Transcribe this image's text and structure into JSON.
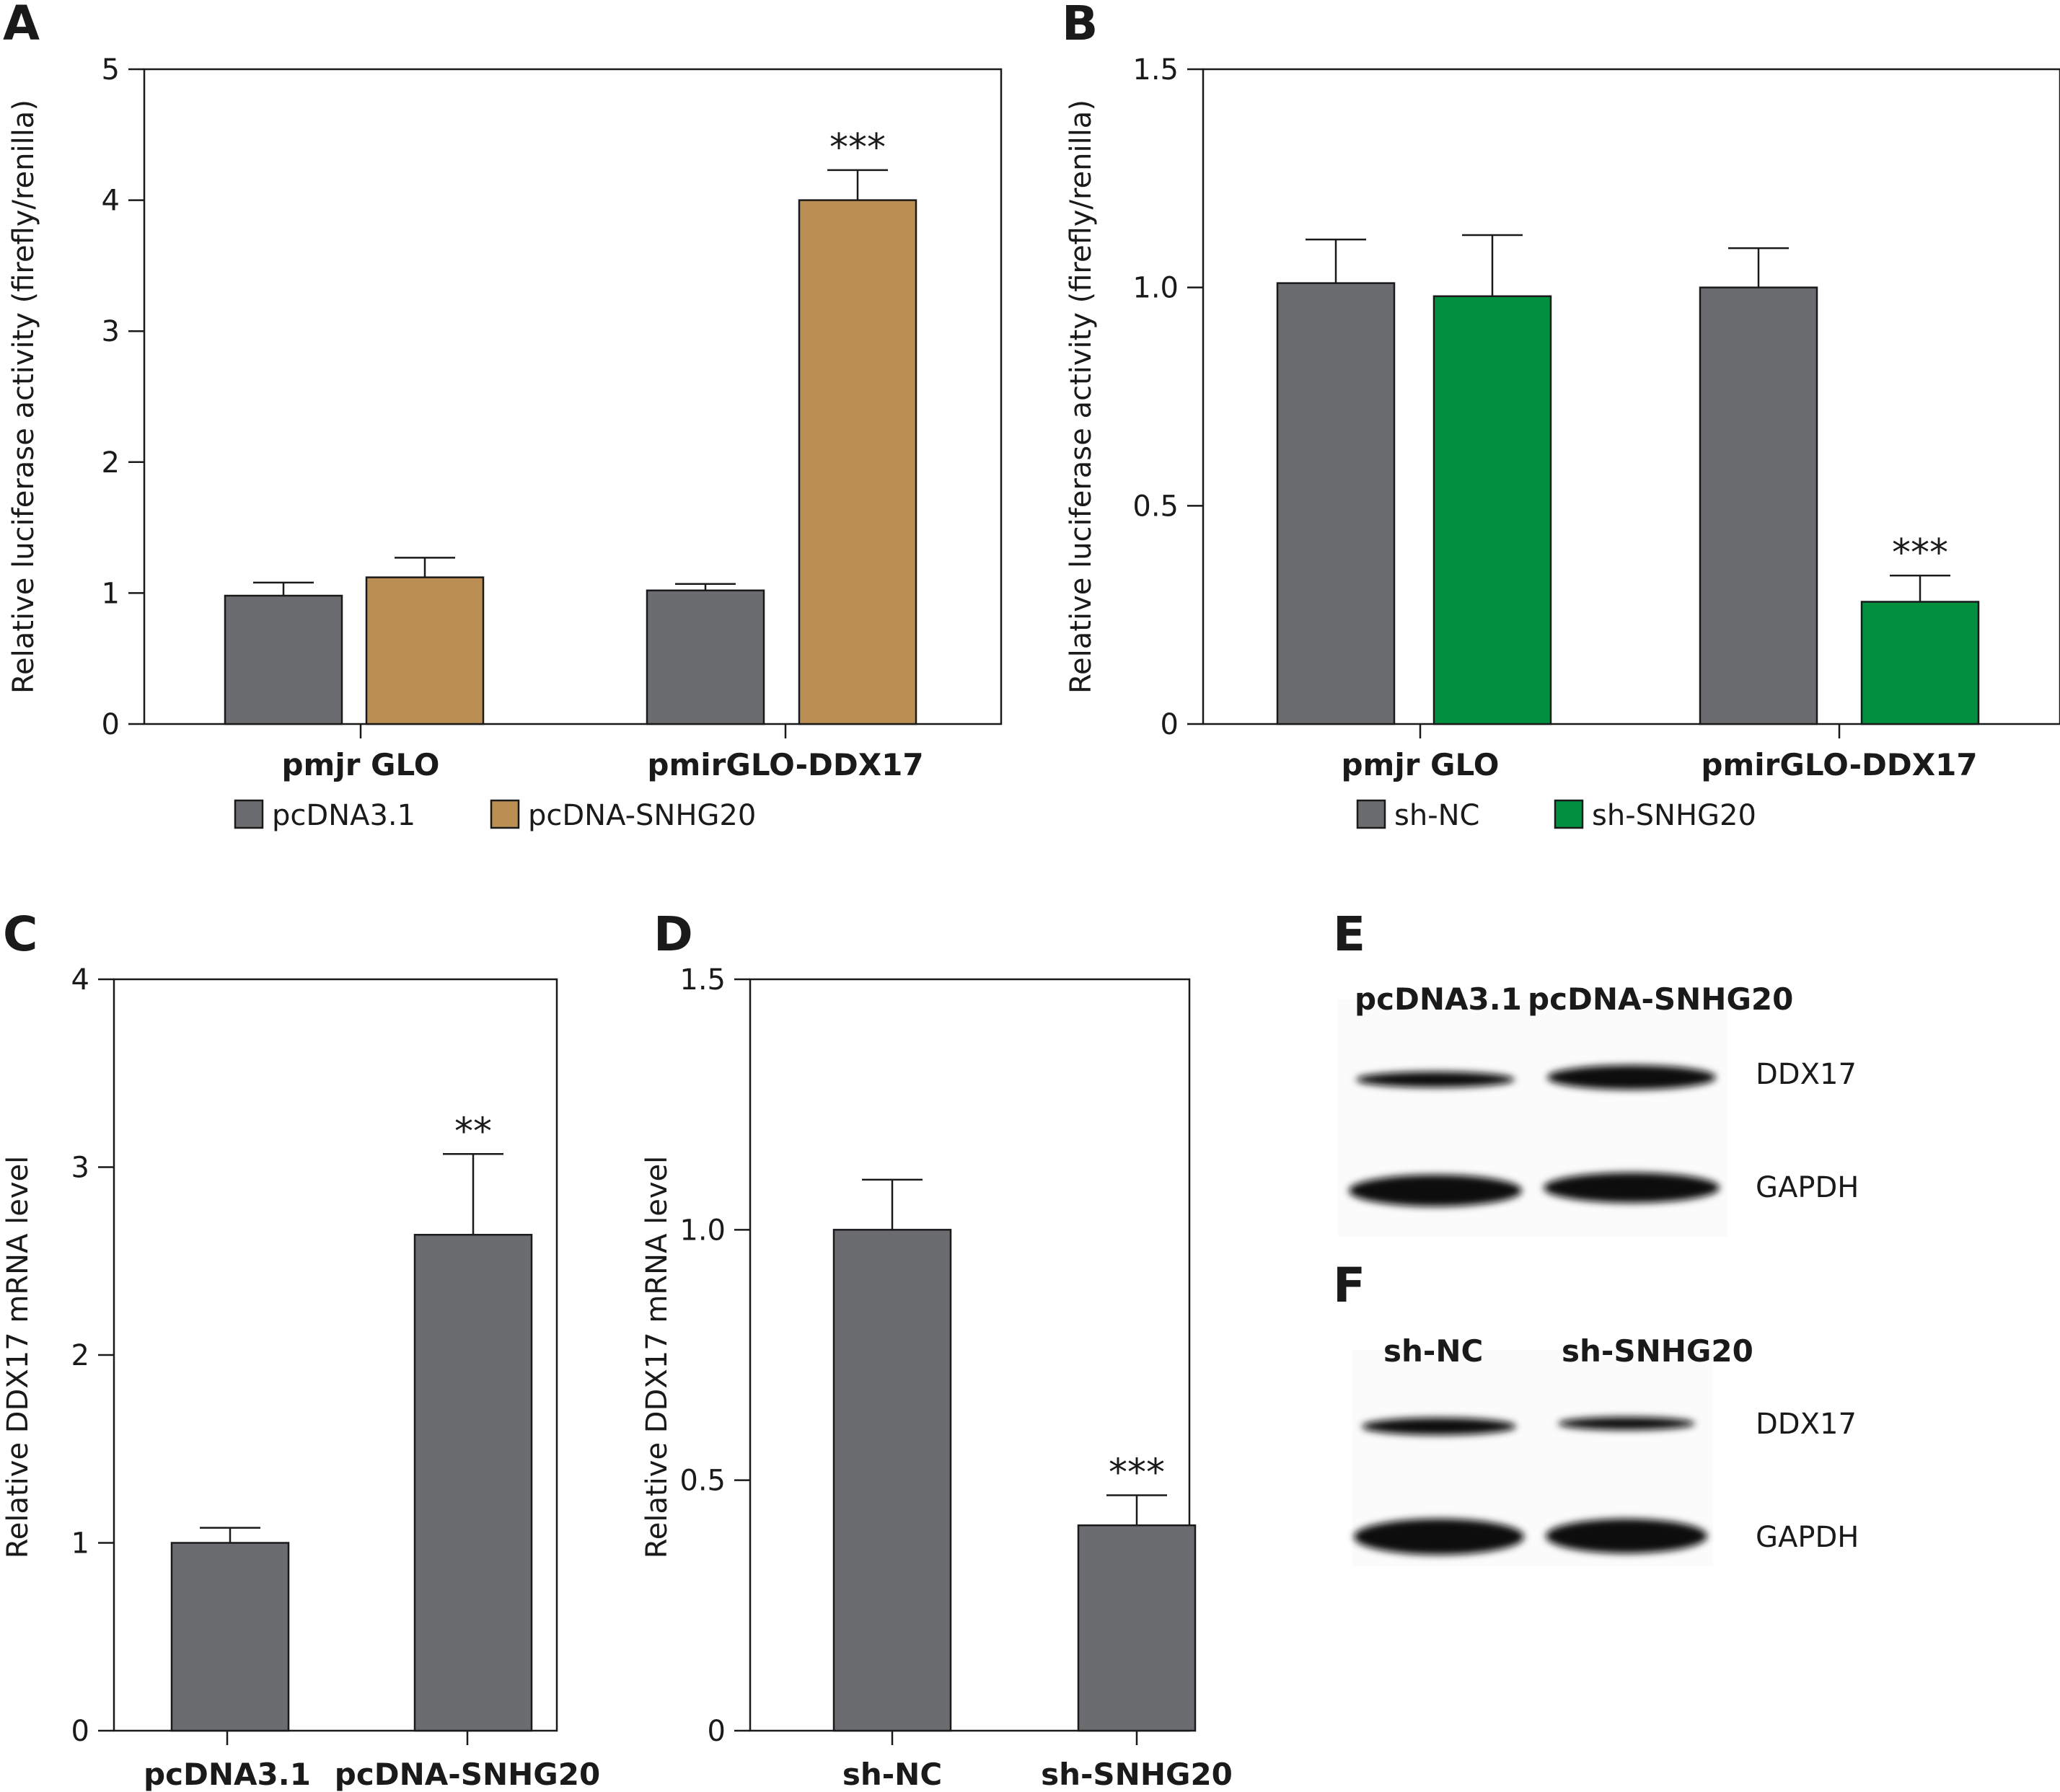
{
  "panels": {
    "A": {
      "letter": "A"
    },
    "B": {
      "letter": "B"
    },
    "C": {
      "letter": "C"
    },
    "D": {
      "letter": "D"
    },
    "E": {
      "letter": "E"
    },
    "F": {
      "letter": "F"
    }
  },
  "colors": {
    "gray": "#6b6c70",
    "tan": "#bb8e53",
    "green": "#009040",
    "axis": "#1a1a1a"
  },
  "chart_data": [
    {
      "id": "A",
      "type": "bar",
      "ylabel": "Relative luciferase activity (firefly/renilla)",
      "ylim": [
        0,
        5
      ],
      "yticks": [
        "0",
        "1",
        "2",
        "3",
        "4",
        "5"
      ],
      "categories": [
        "pmjr GLO",
        "pmirGLO-DDX17"
      ],
      "series": [
        {
          "name": "pcDNA3.1",
          "color": "#6b6c70",
          "values": [
            0.98,
            1.02
          ],
          "errors": [
            0.1,
            0.05
          ]
        },
        {
          "name": "pcDNA-SNHG20",
          "color": "#bb8e53",
          "values": [
            1.12,
            4.0
          ],
          "errors": [
            0.15,
            0.23
          ]
        }
      ],
      "annotations": [
        {
          "series": 1,
          "category": 1,
          "text": "***"
        }
      ],
      "legend": "bottom"
    },
    {
      "id": "B",
      "type": "bar",
      "ylabel": "Relative luciferase activity (firefly/renilla)",
      "ylim": [
        0,
        1.5
      ],
      "yticks": [
        "0",
        "0.5",
        "1.0",
        "1.5"
      ],
      "categories": [
        "pmjr GLO",
        "pmirGLO-DDX17"
      ],
      "series": [
        {
          "name": "sh-NC",
          "color": "#6b6c70",
          "values": [
            1.01,
            1.0
          ],
          "errors": [
            0.1,
            0.09
          ]
        },
        {
          "name": "sh-SNHG20",
          "color": "#009040",
          "values": [
            0.98,
            0.28
          ],
          "errors": [
            0.14,
            0.06
          ]
        }
      ],
      "annotations": [
        {
          "series": 1,
          "category": 1,
          "text": "***"
        }
      ],
      "legend": "bottom"
    },
    {
      "id": "C",
      "type": "bar",
      "ylabel": "Relative DDX17 mRNA level",
      "ylim": [
        0,
        4
      ],
      "yticks": [
        "0",
        "1",
        "2",
        "3",
        "4"
      ],
      "categories": [
        "pcDNA3.1",
        "pcDNA-SNHG20"
      ],
      "series": [
        {
          "color": "#6b6c70",
          "values": [
            1.0,
            2.64
          ],
          "errors": [
            0.08,
            0.43
          ]
        }
      ],
      "annotations": [
        {
          "series": 0,
          "category": 1,
          "text": "**"
        }
      ]
    },
    {
      "id": "D",
      "type": "bar",
      "ylabel": "Relative DDX17 mRNA level",
      "ylim": [
        0,
        1.5
      ],
      "yticks": [
        "0",
        "0.5",
        "1.0",
        "1.5"
      ],
      "categories": [
        "sh-NC",
        "sh-SNHG20"
      ],
      "series": [
        {
          "color": "#6b6c70",
          "values": [
            1.0,
            0.41
          ],
          "errors": [
            0.1,
            0.06
          ]
        }
      ],
      "annotations": [
        {
          "series": 0,
          "category": 1,
          "text": "***"
        }
      ]
    }
  ],
  "blots": {
    "E": {
      "lanes": [
        "pcDNA3.1",
        "pcDNA-SNHG20"
      ],
      "proteins": [
        "DDX17",
        "GAPDH"
      ],
      "intensity": {
        "DDX17": [
          0.55,
          0.9
        ],
        "GAPDH": [
          1.0,
          1.0
        ]
      }
    },
    "F": {
      "lanes": [
        "sh-NC",
        "sh-SNHG20"
      ],
      "proteins": [
        "DDX17",
        "GAPDH"
      ],
      "intensity": {
        "DDX17": [
          0.75,
          0.45
        ],
        "GAPDH": [
          1.0,
          1.0
        ]
      }
    }
  }
}
